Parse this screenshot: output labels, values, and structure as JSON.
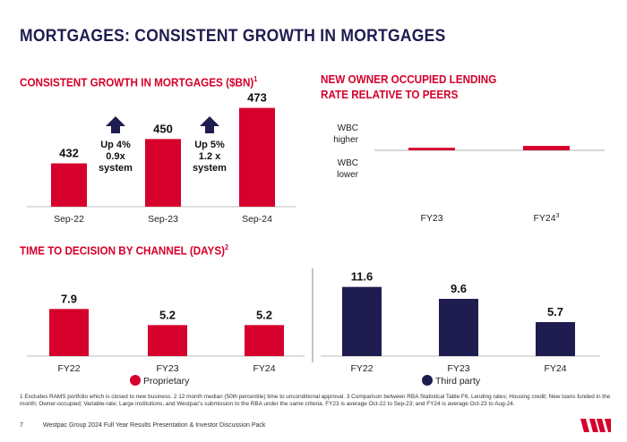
{
  "page": {
    "title": "MORTGAGES: CONSISTENT GROWTH IN MORTGAGES",
    "footnote": "1 Excludes RAMS portfolio which is closed to new business. 2 12 month median (50th percentile) time to unconditional approval. 3 Comparison between RBA Statistical Table F6, Lending rates; Housing credit; New loans funded in the month; Owner-occupied; Variable-rate; Large institutions, and Westpac's submission to the RBA under the same criteria.  FY23 is average Oct-22 to Sep-23; and FY24 is average Oct-23 to Aug-24.",
    "page_number": "7",
    "footer_text": "Westpac Group 2024 Full Year Results Presentation & Investor Discussion Pack",
    "logo_name": "westpac-w-logo"
  },
  "colors": {
    "red": "#d5002b",
    "navy": "#1f1c4f",
    "grey": "#bbbbbb"
  },
  "chart_data": [
    {
      "type": "bar",
      "title": "CONSISTENT GROWTH IN MORTGAGES ($BN)",
      "title_sup": "1",
      "categories": [
        "Sep-22",
        "Sep-23",
        "Sep-24"
      ],
      "values": [
        432,
        450,
        473
      ],
      "ylim": [
        400,
        480
      ],
      "annotations": [
        {
          "lines": [
            "Up 4%",
            "0.9x",
            "system"
          ],
          "icon": "up-arrow-icon"
        },
        {
          "lines": [
            "Up 5%",
            "1.2 x",
            "system"
          ],
          "icon": "up-arrow-icon"
        }
      ]
    },
    {
      "type": "bar",
      "title_lines": [
        "NEW OWNER OCCUPIED LENDING",
        "RATE RELATIVE TO PEERS"
      ],
      "categories": [
        "FY23",
        "FY24"
      ],
      "category_sups": [
        "",
        "3"
      ],
      "values": [
        0.04,
        0.07
      ],
      "ylabels": {
        "higher": [
          "WBC",
          "higher"
        ],
        "lower": [
          "WBC",
          "lower"
        ]
      }
    },
    {
      "type": "bar",
      "title": "TIME TO DECISION BY CHANNEL (DAYS)",
      "title_sup": "2",
      "categories": [
        "FY22",
        "FY23",
        "FY24"
      ],
      "series": [
        {
          "name": "Proprietary",
          "values": [
            7.9,
            5.2,
            5.2
          ],
          "labels": [
            "7.9",
            "5.2",
            "5.2"
          ]
        },
        {
          "name": "Third party",
          "values": [
            11.6,
            9.6,
            5.7
          ],
          "labels": [
            "11.6",
            "9.6",
            "5.7"
          ]
        }
      ],
      "ylim": [
        0,
        12
      ]
    }
  ]
}
